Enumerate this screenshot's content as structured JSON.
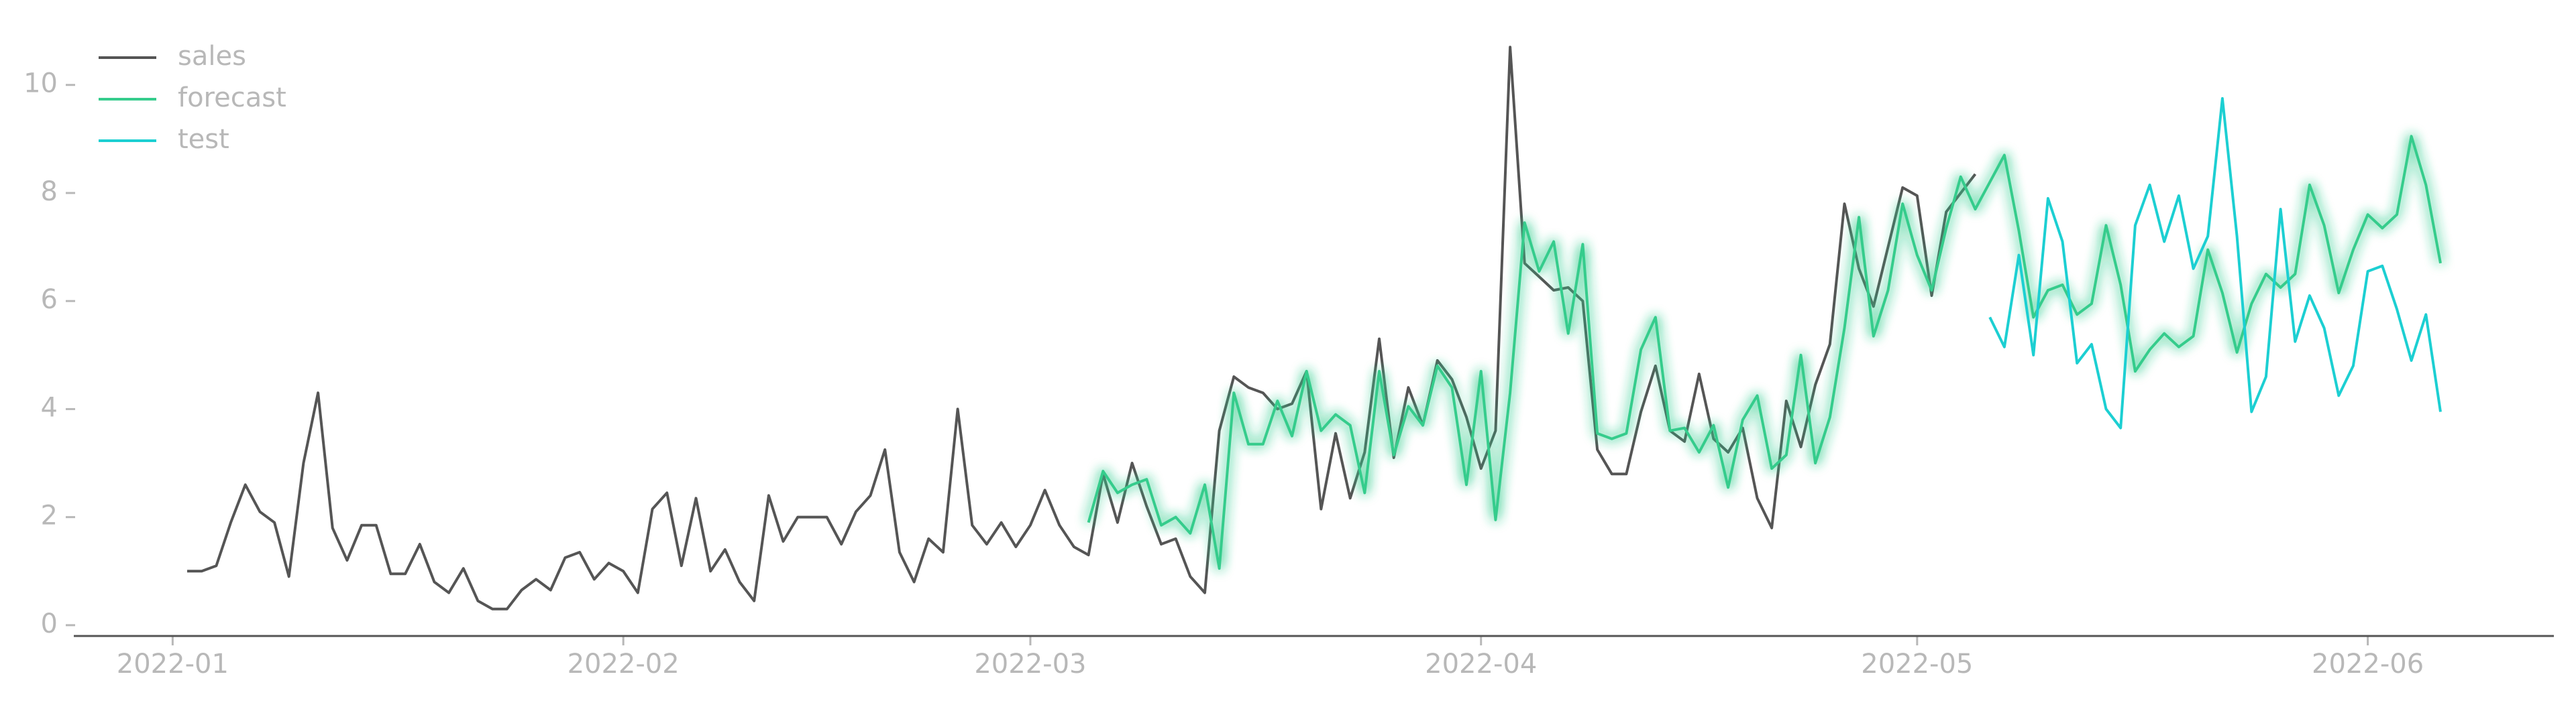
{
  "chart_data": {
    "type": "line",
    "legend": "upper left",
    "grid": false,
    "xlim": [
      -5.8,
      164.8
    ],
    "xticks": [
      {
        "value": 1,
        "label": "2022-01"
      },
      {
        "value": 32,
        "label": "2022-02"
      },
      {
        "value": 60,
        "label": "2022-03"
      },
      {
        "value": 91,
        "label": "2022-04"
      },
      {
        "value": 121,
        "label": "2022-05"
      },
      {
        "value": 152,
        "label": "2022-06"
      }
    ],
    "ylim": [
      -0.2,
      11.2
    ],
    "yticks": [
      0,
      2,
      4,
      6,
      8,
      10
    ],
    "series": [
      {
        "name": "sales",
        "color": "#555555",
        "x": [
          2,
          3,
          4,
          5,
          6,
          7,
          8,
          9,
          10,
          11,
          12,
          13,
          14,
          15,
          16,
          17,
          18,
          19,
          20,
          21,
          22,
          23,
          24,
          25,
          26,
          27,
          28,
          29,
          30,
          31,
          32,
          33,
          34,
          35,
          36,
          37,
          38,
          39,
          40,
          41,
          42,
          43,
          44,
          45,
          46,
          47,
          48,
          49,
          50,
          51,
          52,
          53,
          54,
          55,
          56,
          57,
          58,
          59,
          60,
          61,
          62,
          63,
          64,
          65,
          66,
          67,
          68,
          69,
          70,
          71,
          72,
          73,
          74,
          75,
          76,
          77,
          78,
          79,
          80,
          81,
          82,
          83,
          84,
          85,
          86,
          87,
          88,
          89,
          90,
          91,
          92,
          93,
          94,
          95,
          96,
          97,
          98,
          99,
          100,
          101,
          102,
          103,
          104,
          105,
          106,
          107,
          108,
          109,
          110,
          111,
          112,
          113,
          114,
          115,
          116,
          117,
          118,
          119,
          120,
          121,
          122,
          123,
          124,
          125
        ],
        "values": [
          1.0,
          1.0,
          1.1,
          1.9,
          2.6,
          2.1,
          1.9,
          0.9,
          3.0,
          4.3,
          1.8,
          1.2,
          1.85,
          1.85,
          0.95,
          0.95,
          1.5,
          0.8,
          0.6,
          1.05,
          0.45,
          0.3,
          0.3,
          0.65,
          0.85,
          0.65,
          1.25,
          1.35,
          0.85,
          1.15,
          1.0,
          0.6,
          2.15,
          2.45,
          1.1,
          2.35,
          1.0,
          1.4,
          0.8,
          0.45,
          2.4,
          1.55,
          2.0,
          2.0,
          2.0,
          1.5,
          2.1,
          2.4,
          3.25,
          1.35,
          0.8,
          1.6,
          1.35,
          4.0,
          1.85,
          1.5,
          1.9,
          1.45,
          1.85,
          2.5,
          1.85,
          1.45,
          1.3,
          2.8,
          1.9,
          3.0,
          2.2,
          1.5,
          1.6,
          0.9,
          0.6,
          3.6,
          4.6,
          4.4,
          4.3,
          4.0,
          4.1,
          4.7,
          2.15,
          3.55,
          2.35,
          3.2,
          5.3,
          3.1,
          4.4,
          3.7,
          4.9,
          4.55,
          3.85,
          2.9,
          3.6,
          10.7,
          6.7,
          6.45,
          6.2,
          6.25,
          6.0,
          3.25,
          2.8,
          2.8,
          3.95,
          4.8,
          3.6,
          3.4,
          4.65,
          3.45,
          3.2,
          3.65,
          2.35,
          1.8,
          4.15,
          3.3,
          4.45,
          5.2,
          7.8,
          6.6,
          5.9,
          7.0,
          8.1,
          7.95,
          6.1,
          7.65,
          8.0,
          8.35
        ]
      },
      {
        "name": "forecast",
        "color": "#35cc8c",
        "glow": true,
        "x": [
          64,
          65,
          66,
          67,
          68,
          69,
          70,
          71,
          72,
          73,
          74,
          75,
          76,
          77,
          78,
          79,
          80,
          81,
          82,
          83,
          84,
          85,
          86,
          87,
          88,
          89,
          90,
          91,
          92,
          93,
          94,
          95,
          96,
          97,
          98,
          99,
          100,
          101,
          102,
          103,
          104,
          105,
          106,
          107,
          108,
          109,
          110,
          111,
          112,
          113,
          114,
          115,
          116,
          117,
          118,
          119,
          120,
          121,
          122,
          123,
          124,
          125,
          126,
          127,
          128,
          129,
          130,
          131,
          132,
          133,
          134,
          135,
          136,
          137,
          138,
          139,
          140,
          141,
          142,
          143,
          144,
          145,
          146,
          147,
          148,
          149,
          150,
          151,
          152,
          153,
          154,
          155,
          156,
          157
        ],
        "values": [
          1.9,
          2.85,
          2.45,
          2.6,
          2.7,
          1.85,
          2.0,
          1.7,
          2.6,
          1.05,
          4.3,
          3.35,
          3.35,
          4.15,
          3.5,
          4.7,
          3.6,
          3.9,
          3.7,
          2.45,
          4.7,
          3.15,
          4.05,
          3.7,
          4.8,
          4.4,
          2.6,
          4.7,
          1.95,
          4.3,
          7.45,
          6.55,
          7.1,
          5.4,
          7.05,
          3.55,
          3.45,
          3.55,
          5.1,
          5.7,
          3.6,
          3.65,
          3.2,
          3.7,
          2.55,
          3.8,
          4.25,
          2.9,
          3.15,
          5.0,
          3.0,
          3.85,
          5.5,
          7.55,
          5.35,
          6.2,
          7.8,
          6.85,
          6.2,
          7.35,
          8.3,
          7.7,
          8.2,
          8.7,
          7.3,
          5.7,
          6.2,
          6.3,
          5.75,
          5.95,
          7.4,
          6.3,
          4.7,
          5.1,
          5.4,
          5.15,
          5.35,
          6.95,
          6.15,
          5.05,
          5.95,
          6.5,
          6.25,
          6.5,
          8.15,
          7.4,
          6.15,
          6.95,
          7.6,
          7.35,
          7.6,
          9.05,
          8.15,
          6.7
        ]
      },
      {
        "name": "test",
        "color": "#1ccfd2",
        "x": [
          126,
          127,
          128,
          129,
          130,
          131,
          132,
          133,
          134,
          135,
          136,
          137,
          138,
          139,
          140,
          141,
          142,
          143,
          144,
          145,
          146,
          147,
          148,
          149,
          150,
          151,
          152,
          153,
          154,
          155,
          156,
          157
        ],
        "values": [
          5.7,
          5.15,
          6.85,
          5.0,
          7.9,
          7.1,
          4.85,
          5.2,
          4.0,
          3.65,
          7.4,
          8.15,
          7.1,
          7.95,
          6.6,
          7.2,
          9.75,
          7.2,
          3.95,
          4.6,
          7.7,
          5.25,
          6.1,
          5.5,
          4.25,
          4.8,
          6.55,
          6.65,
          5.85,
          4.9,
          5.75,
          3.95
        ]
      }
    ]
  }
}
